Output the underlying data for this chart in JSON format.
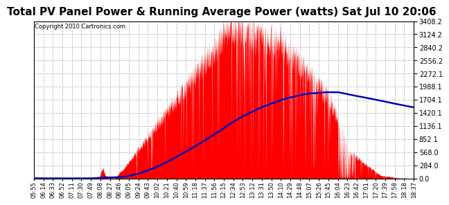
{
  "title": "Total PV Panel Power & Running Average Power (watts) Sat Jul 10 20:06",
  "copyright": "Copyright 2010 Cartronics.com",
  "yticks": [
    0.0,
    284.0,
    568.0,
    852.1,
    1136.1,
    1420.1,
    1704.1,
    1988.1,
    2272.1,
    2556.2,
    2840.2,
    3124.2,
    3408.2
  ],
  "ymax": 3408.2,
  "ymin": 0.0,
  "fill_color": "#FF0000",
  "line_color": "#0000BB",
  "background_color": "#FFFFFF",
  "title_fontsize": 11,
  "grid_color": "#AAAAAA",
  "xtick_labels": [
    "05:55",
    "06:14",
    "06:33",
    "06:52",
    "07:11",
    "07:30",
    "07:49",
    "08:08",
    "08:27",
    "08:46",
    "09:05",
    "09:24",
    "09:43",
    "10:02",
    "10:21",
    "10:40",
    "10:59",
    "11:18",
    "11:37",
    "11:56",
    "12:15",
    "12:34",
    "12:53",
    "13:12",
    "13:31",
    "13:50",
    "14:10",
    "14:29",
    "14:48",
    "15:07",
    "15:26",
    "15:45",
    "16:04",
    "16:23",
    "16:42",
    "17:01",
    "17:20",
    "17:39",
    "17:58",
    "18:18",
    "18:37"
  ]
}
